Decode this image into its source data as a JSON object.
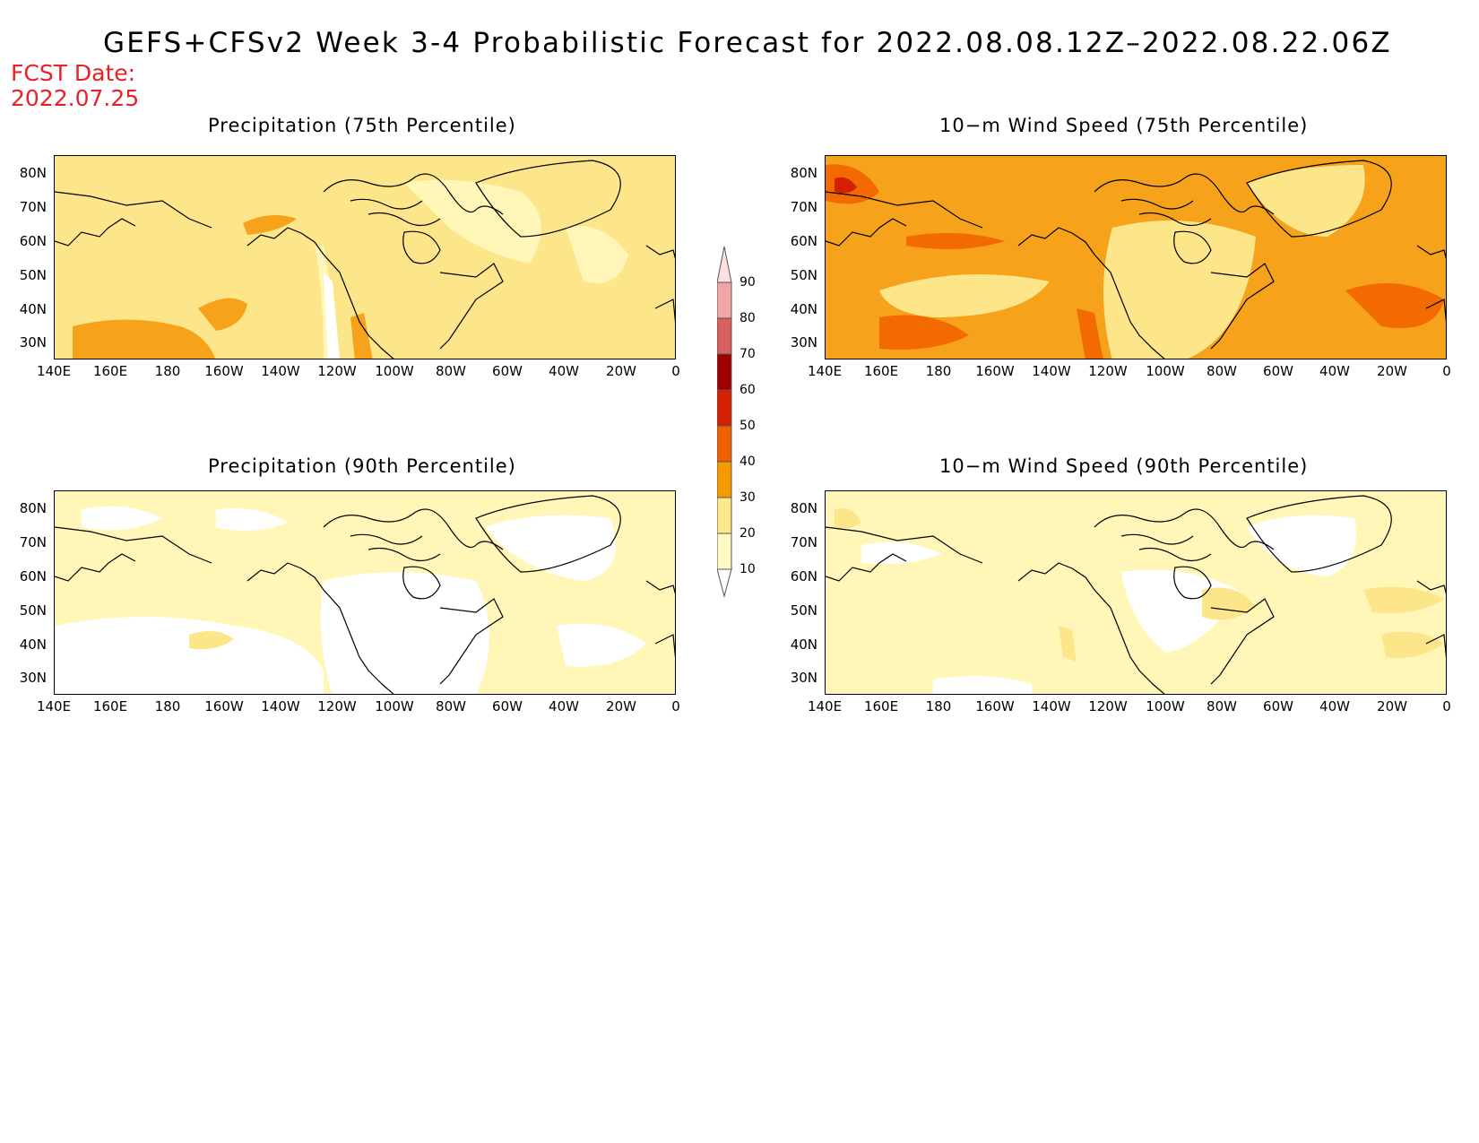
{
  "title": "GEFS+CFSv2 Week 3-4 Probabilistic Forecast for 2022.08.08.12Z–2022.08.22.06Z",
  "fcst_label": "FCST Date:",
  "fcst_date": "2022.07.25",
  "lat_labels": [
    "80N",
    "70N",
    "60N",
    "50N",
    "40N",
    "30N"
  ],
  "lon_labels": [
    "140E",
    "160E",
    "180",
    "160W",
    "140W",
    "120W",
    "100W",
    "80W",
    "60W",
    "40W",
    "20W",
    "0"
  ],
  "panels": [
    {
      "id": "precip-75",
      "title": "Precipitation (75th Percentile)",
      "dominant_category": "20-30"
    },
    {
      "id": "wind-75",
      "title": "10−m Wind Speed (75th Percentile)",
      "dominant_category": "30-40"
    },
    {
      "id": "precip-90",
      "title": "Precipitation (90th Percentile)",
      "dominant_category": "10-20"
    },
    {
      "id": "wind-90",
      "title": "10−m Wind Speed (90th Percentile)",
      "dominant_category": "10-20"
    }
  ],
  "colorbar": {
    "labels": [
      "90",
      "80",
      "70",
      "60",
      "50",
      "40",
      "30",
      "20",
      "10"
    ],
    "colors": [
      "#fde0e0",
      "#f2a5a5",
      "#d96060",
      "#a00000",
      "#d42000",
      "#f26000",
      "#f59a00",
      "#fde78a",
      "#fff8c0",
      "#ffffff"
    ]
  }
}
